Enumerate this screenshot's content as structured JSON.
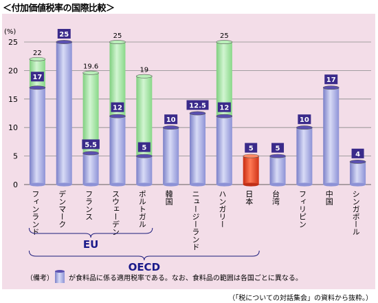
{
  "title": "＜付加価値税率の国際比較＞",
  "chart_data": {
    "type": "bar",
    "ylabel": "(%)",
    "ylim": [
      0,
      25
    ],
    "yticks": [
      0,
      5,
      10,
      15,
      20,
      25
    ],
    "grid": true,
    "categories": [
      "フィンランド",
      "デンマーク",
      "フランス",
      "スウェーデン",
      "ポルトガル",
      "韓国",
      "ニュージーランド",
      "ハンガリー",
      "日本",
      "台湾",
      "フィリピン",
      "中国",
      "シンガポール"
    ],
    "standard_rate": [
      22,
      25,
      19.6,
      25,
      19,
      10,
      12.5,
      25,
      5,
      5,
      10,
      17,
      4
    ],
    "food_rate": [
      17,
      25,
      5.5,
      12,
      5,
      10,
      12.5,
      12,
      5,
      5,
      10,
      17,
      4
    ],
    "standard_labels": [
      "22",
      "",
      "19.6",
      "25",
      "19",
      "",
      "",
      "25",
      "",
      "",
      "",
      "",
      ""
    ],
    "food_labels": [
      "17",
      "25",
      "5.5",
      "12",
      "5",
      "10",
      "12.5",
      "12",
      "5",
      "5",
      "10",
      "17",
      "4"
    ],
    "highlight": "日本",
    "colors": {
      "food": "#9aa0e0",
      "standard": "#9de39d",
      "japan": "#e03a1a",
      "label_box": "#3a2a8a"
    }
  },
  "groups": [
    {
      "label": "EU",
      "from": 0,
      "to": 4
    },
    {
      "label": "OECD",
      "from": 0,
      "to": 8
    }
  ],
  "legend": {
    "prefix": "（備考）",
    "text": "が食料品に係る適用税率である。なお、食料品の範囲は各国ごとに異なる。"
  },
  "source": "（「税についての対話集会」の資料から抜粋。）"
}
